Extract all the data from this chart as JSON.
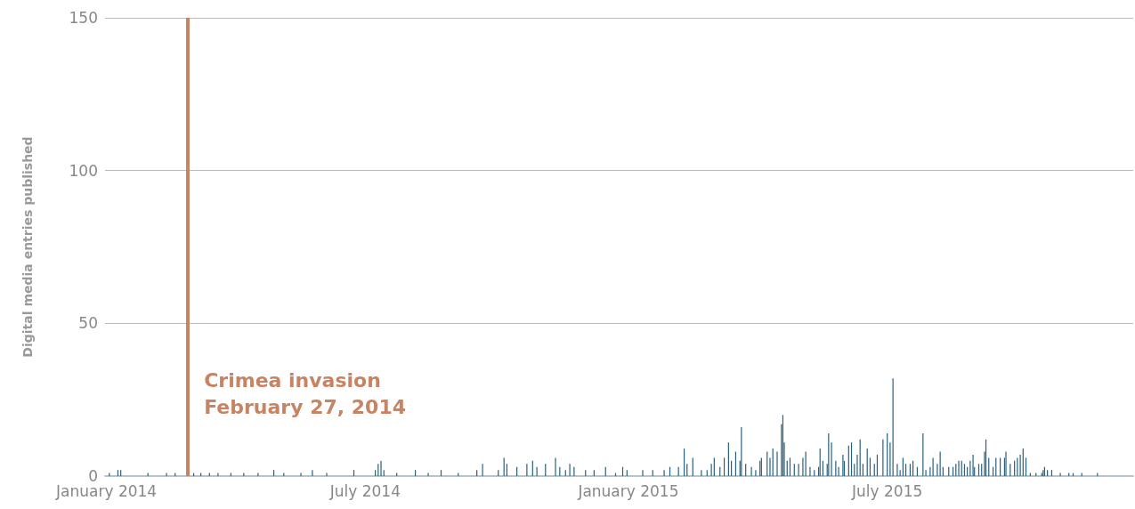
{
  "chart_data": {
    "type": "bar",
    "ylabel": "Digital media entries published",
    "x": [
      "2014-01-03",
      "2014-01-09",
      "2014-01-11",
      "2014-01-30",
      "2014-02-12",
      "2014-02-18",
      "2014-03-03",
      "2014-03-08",
      "2014-03-14",
      "2014-03-20",
      "2014-03-29",
      "2014-04-07",
      "2014-04-17",
      "2014-04-28",
      "2014-05-05",
      "2014-05-17",
      "2014-05-25",
      "2014-06-04",
      "2014-06-23",
      "2014-07-08",
      "2014-07-10",
      "2014-07-12",
      "2014-07-14",
      "2014-07-23",
      "2014-08-05",
      "2014-08-14",
      "2014-08-23",
      "2014-09-04",
      "2014-09-17",
      "2014-09-21",
      "2014-10-02",
      "2014-10-06",
      "2014-10-08",
      "2014-10-15",
      "2014-10-22",
      "2014-10-26",
      "2014-10-29",
      "2014-11-04",
      "2014-11-11",
      "2014-11-14",
      "2014-11-18",
      "2014-11-21",
      "2014-11-24",
      "2014-12-02",
      "2014-12-08",
      "2014-12-16",
      "2014-12-23",
      "2014-12-28",
      "2014-12-31",
      "2015-01-11",
      "2015-01-18",
      "2015-01-26",
      "2015-01-30",
      "2015-02-05",
      "2015-02-09",
      "2015-02-11",
      "2015-02-15",
      "2015-02-21",
      "2015-02-25",
      "2015-02-28",
      "2015-03-02",
      "2015-03-06",
      "2015-03-09",
      "2015-03-12",
      "2015-03-14",
      "2015-03-17",
      "2015-03-20",
      "2015-03-21",
      "2015-03-24",
      "2015-03-28",
      "2015-03-31",
      "2015-04-03",
      "2015-04-04",
      "2015-04-08",
      "2015-04-10",
      "2015-04-12",
      "2015-04-15",
      "2015-04-18",
      "2015-04-19",
      "2015-04-20",
      "2015-04-22",
      "2015-04-24",
      "2015-04-27",
      "2015-04-30",
      "2015-05-03",
      "2015-05-05",
      "2015-05-08",
      "2015-05-11",
      "2015-05-14",
      "2015-05-15",
      "2015-05-17",
      "2015-05-20",
      "2015-05-21",
      "2015-05-23",
      "2015-05-26",
      "2015-05-28",
      "2015-05-31",
      "2015-06-01",
      "2015-06-04",
      "2015-06-06",
      "2015-06-08",
      "2015-06-10",
      "2015-06-12",
      "2015-06-14",
      "2015-06-17",
      "2015-06-19",
      "2015-06-22",
      "2015-06-24",
      "2015-06-28",
      "2015-07-01",
      "2015-07-03",
      "2015-07-05",
      "2015-07-08",
      "2015-07-10",
      "2015-07-12",
      "2015-07-14",
      "2015-07-17",
      "2015-07-19",
      "2015-07-22",
      "2015-07-26",
      "2015-07-28",
      "2015-07-31",
      "2015-08-02",
      "2015-08-05",
      "2015-08-07",
      "2015-08-09",
      "2015-08-13",
      "2015-08-16",
      "2015-08-18",
      "2015-08-20",
      "2015-08-22",
      "2015-08-24",
      "2015-08-26",
      "2015-08-28",
      "2015-08-30",
      "2015-08-31",
      "2015-09-03",
      "2015-09-05",
      "2015-09-07",
      "2015-09-08",
      "2015-09-10",
      "2015-09-13",
      "2015-09-15",
      "2015-09-18",
      "2015-09-21",
      "2015-09-22",
      "2015-09-25",
      "2015-09-28",
      "2015-09-30",
      "2015-10-02",
      "2015-10-04",
      "2015-10-06",
      "2015-10-09",
      "2015-10-13",
      "2015-10-17",
      "2015-10-18",
      "2015-10-19",
      "2015-10-21",
      "2015-10-24",
      "2015-10-30",
      "2015-11-05",
      "2015-11-08",
      "2015-11-14",
      "2015-11-25"
    ],
    "values": [
      1,
      2,
      2,
      1,
      1,
      1,
      1,
      1,
      1,
      1,
      1,
      1,
      1,
      2,
      1,
      1,
      2,
      1,
      2,
      2,
      4,
      5,
      2,
      1,
      2,
      1,
      2,
      1,
      2,
      4,
      2,
      6,
      4,
      3,
      4,
      5,
      3,
      4,
      6,
      3,
      2,
      4,
      3,
      2,
      2,
      3,
      1,
      3,
      2,
      2,
      2,
      2,
      3,
      3,
      9,
      4,
      6,
      2,
      2,
      4,
      6,
      3,
      6,
      11,
      5,
      8,
      5,
      16,
      4,
      3,
      2,
      5,
      6,
      8,
      6,
      9,
      8,
      17,
      20,
      11,
      5,
      6,
      4,
      4,
      6,
      8,
      3,
      2,
      3,
      9,
      5,
      4,
      14,
      11,
      5,
      3,
      7,
      5,
      10,
      11,
      4,
      7,
      12,
      4,
      9,
      6,
      4,
      7,
      12,
      14,
      11,
      32,
      4,
      2,
      6,
      4,
      4,
      5,
      3,
      14,
      2,
      3,
      6,
      4,
      8,
      3,
      3,
      3,
      4,
      5,
      5,
      4,
      3,
      5,
      7,
      3,
      4,
      4,
      8,
      12,
      6,
      3,
      6,
      6,
      6,
      8,
      4,
      5,
      6,
      7,
      9,
      6,
      1,
      1,
      1,
      2,
      3,
      2,
      2,
      1,
      1,
      1,
      1,
      1
    ],
    "color": "#28607f",
    "xlim": [
      "2013-12-31",
      "2015-12-20"
    ],
    "xticks": [
      {
        "value": "2014-01-01",
        "label": "January 2014"
      },
      {
        "value": "2014-07-01",
        "label": "July 2014"
      },
      {
        "value": "2015-01-01",
        "label": "January 2015"
      },
      {
        "value": "2015-07-01",
        "label": "July 2015"
      }
    ],
    "ylim": [
      0,
      150
    ],
    "yticks": [
      0,
      50,
      100,
      150
    ],
    "grid": "y",
    "ref_lines": [
      {
        "axis": "x",
        "value": "2014-02-27",
        "label": "Crimea invasion\nFebruary 27, 2014",
        "color": "#c88462"
      }
    ]
  }
}
